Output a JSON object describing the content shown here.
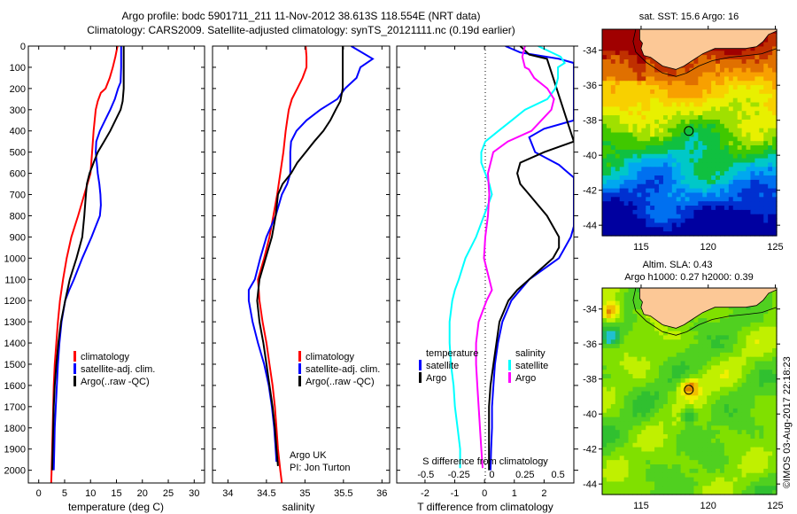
{
  "header": {
    "title_line1": "Argo profile: bodc 5901711_211 11-Nov-2012 38.613S 118.554E (NRT data)",
    "title_line2": "Climatology: CARS2009. Satellite-adjusted climatology: synTS_20121111.nc (0.19d earlier)"
  },
  "credit": {
    "institution": "Argo UK",
    "pi": "PI: Jon Turton",
    "stamp": "©IMOS 03-Aug-2017 22:18:23"
  },
  "colors": {
    "climatology": "#ff0000",
    "satellite": "#0000ff",
    "argo": "#000000",
    "sal_satellite": "#00ffff",
    "sal_argo": "#ff00ff",
    "land": "#fcc896"
  },
  "chart_data": [
    {
      "id": "temperature",
      "type": "line",
      "xlabel": "temperature (deg C)",
      "ylabel": "",
      "xlim": [
        -2,
        32
      ],
      "ylim": [
        2060,
        0
      ],
      "xticks": [
        "0",
        "5",
        "10",
        "15",
        "20",
        "25",
        "30"
      ],
      "yticks": [
        "0",
        "100",
        "200",
        "300",
        "400",
        "500",
        "600",
        "700",
        "800",
        "900",
        "1000",
        "1100",
        "1200",
        "1300",
        "1400",
        "1500",
        "1600",
        "1700",
        "1800",
        "1900",
        "2000"
      ],
      "legend": [
        "climatology",
        "satellite-adj. clim.",
        "Argo(..raw -QC)"
      ],
      "legend_position": "center-right",
      "series": [
        {
          "name": "climatology",
          "color": "#ff0000",
          "depth": [
            0,
            50,
            100,
            150,
            200,
            220,
            260,
            300,
            400,
            500,
            600,
            650,
            700,
            800,
            900,
            1000,
            1100,
            1200,
            1300,
            1400,
            1500,
            1600,
            1700,
            1800,
            1900,
            2000,
            2060
          ],
          "values": [
            15.2,
            14.8,
            14.3,
            13.7,
            12.9,
            12.0,
            11.4,
            11.0,
            10.6,
            10.3,
            10.0,
            9.4,
            8.8,
            7.6,
            6.3,
            5.4,
            4.7,
            4.1,
            3.7,
            3.4,
            3.1,
            2.9,
            2.8,
            2.7,
            2.6,
            2.5,
            2.4
          ]
        },
        {
          "name": "satellite-adj. clim.",
          "color": "#0000ff",
          "depth": [
            0,
            100,
            170,
            200,
            250,
            300,
            350,
            400,
            450,
            500,
            550,
            600,
            650,
            700,
            750,
            800,
            850,
            900,
            1000,
            1100,
            1150,
            1200,
            1300,
            1400,
            1500,
            1600,
            1700,
            1800,
            1900,
            2000
          ],
          "values": [
            15.9,
            15.9,
            15.8,
            15.3,
            14.7,
            13.8,
            12.8,
            11.8,
            11.1,
            11.0,
            11.2,
            11.4,
            11.7,
            11.9,
            12.0,
            11.8,
            11.0,
            10.2,
            8.4,
            6.8,
            5.9,
            5.1,
            4.4,
            4.0,
            3.7,
            3.5,
            3.3,
            3.1,
            3.0,
            2.9
          ]
        },
        {
          "name": "Argo(..raw -QC)",
          "color": "#000000",
          "depth": [
            0,
            100,
            200,
            260,
            300,
            350,
            400,
            450,
            500,
            550,
            600,
            650,
            700,
            800,
            900,
            1000,
            1100,
            1200,
            1300,
            1400,
            1500,
            1600,
            1700,
            1800,
            1900,
            2000
          ],
          "values": [
            16.4,
            16.4,
            16.4,
            16.2,
            15.8,
            14.8,
            13.8,
            12.6,
            11.4,
            10.6,
            9.8,
            9.3,
            9.1,
            8.8,
            8.4,
            7.3,
            6.0,
            5.1,
            4.3,
            3.8,
            3.4,
            3.1,
            2.9,
            2.8,
            2.7,
            2.6
          ]
        }
      ]
    },
    {
      "id": "salinity",
      "type": "line",
      "xlabel": "salinity",
      "xlim": [
        33.8,
        36.1
      ],
      "ylim": [
        2060,
        0
      ],
      "xticks": [
        "34",
        "34.5",
        "35",
        "35.5",
        "36"
      ],
      "legend": [
        "climatology",
        "satellite-adj. clim.",
        "Argo(..raw -QC)"
      ],
      "legend_position": "center-right",
      "series": [
        {
          "name": "climatology",
          "color": "#ff0000",
          "depth": [
            0,
            50,
            100,
            150,
            200,
            250,
            300,
            350,
            400,
            500,
            600,
            700,
            800,
            900,
            1000,
            1050,
            1100,
            1200,
            1300,
            1400,
            1500,
            1600,
            1700,
            1800,
            1900,
            2000,
            2060
          ],
          "values": [
            35.01,
            35.02,
            35.02,
            34.97,
            34.9,
            34.83,
            34.79,
            34.77,
            34.75,
            34.72,
            34.68,
            34.64,
            34.59,
            34.54,
            34.47,
            34.43,
            34.39,
            34.41,
            34.45,
            34.5,
            34.54,
            34.58,
            34.61,
            34.63,
            34.65,
            34.68,
            34.7
          ]
        },
        {
          "name": "satellite-adj. clim.",
          "color": "#0000ff",
          "depth": [
            0,
            60,
            100,
            150,
            200,
            250,
            300,
            350,
            400,
            450,
            500,
            550,
            600,
            650,
            700,
            800,
            900,
            1000,
            1100,
            1150,
            1200,
            1300,
            1400,
            1500,
            1600,
            1700,
            1800,
            1900,
            1960
          ],
          "values": [
            35.6,
            35.88,
            35.72,
            35.67,
            35.52,
            35.42,
            35.2,
            35.02,
            34.89,
            34.82,
            34.81,
            34.81,
            34.81,
            34.77,
            34.7,
            34.62,
            34.5,
            34.42,
            34.35,
            34.27,
            34.27,
            34.32,
            34.39,
            34.47,
            34.53,
            34.57,
            34.6,
            34.62,
            34.63
          ]
        },
        {
          "name": "Argo(..raw -QC)",
          "color": "#000000",
          "depth": [
            0,
            50,
            100,
            150,
            200,
            260,
            300,
            350,
            400,
            450,
            500,
            550,
            600,
            650,
            700,
            800,
            900,
            1000,
            1100,
            1200,
            1300,
            1400,
            1500,
            1600,
            1700,
            1800,
            1900,
            1980
          ],
          "values": [
            35.49,
            35.49,
            35.49,
            35.49,
            35.49,
            35.46,
            35.4,
            35.33,
            35.24,
            35.12,
            35.01,
            34.9,
            34.82,
            34.71,
            34.65,
            34.62,
            34.57,
            34.49,
            34.41,
            34.38,
            34.41,
            34.46,
            34.5,
            34.54,
            34.58,
            34.61,
            34.63,
            34.65
          ]
        }
      ]
    },
    {
      "id": "difference",
      "type": "line",
      "xlabel": "T difference from climatology",
      "xlabel2": "S difference from climatology",
      "xlim": [
        -2.95,
        3.0
      ],
      "xlim_salinity": [
        -0.72,
        0.62
      ],
      "ylim": [
        2060,
        0
      ],
      "xticks": [
        "-2",
        "-1",
        "0",
        "1",
        "2"
      ],
      "xticks_salinity": [
        "-0.5",
        "-0.25",
        "0",
        "0.25",
        "0.5"
      ],
      "zero_line": "dotted",
      "legend_groups": [
        {
          "title": "temperature",
          "entries": [
            "satellite",
            "Argo"
          ]
        },
        {
          "title": "salinity",
          "entries": [
            "satellite",
            "Argo"
          ]
        }
      ],
      "legend_position": "bottom-center",
      "series": [
        {
          "name": "temperature satellite",
          "axis": "T",
          "color": "#0000ff",
          "depth": [
            0,
            30,
            60,
            80,
            350,
            390,
            430,
            500,
            560,
            620,
            650,
            850,
            900,
            1000,
            1050,
            1100,
            1150,
            1200,
            1300,
            1400,
            1500,
            1600,
            1700,
            1800,
            1900,
            2000
          ],
          "values": [
            0.7,
            1.2,
            2.5,
            3.0,
            3.0,
            2.0,
            1.5,
            1.7,
            2.5,
            3.0,
            3.0,
            3.0,
            2.9,
            2.5,
            2.0,
            1.5,
            1.2,
            0.9,
            0.6,
            0.45,
            0.35,
            0.3,
            0.25,
            0.25,
            0.22,
            0.2
          ]
        },
        {
          "name": "temperature Argo",
          "axis": "T",
          "color": "#000000",
          "depth": [
            0,
            40,
            60,
            450,
            500,
            550,
            600,
            650,
            700,
            800,
            900,
            950,
            1000,
            1050,
            1100,
            1150,
            1200,
            1300,
            1400,
            1500,
            1600,
            1700,
            1800,
            1900,
            2000
          ],
          "values": [
            1.2,
            1.5,
            2.1,
            3.0,
            2.0,
            1.2,
            1.1,
            1.2,
            1.5,
            2.1,
            2.5,
            2.5,
            2.3,
            1.9,
            1.5,
            1.1,
            0.8,
            0.5,
            0.4,
            0.3,
            0.2,
            0.15,
            0.15,
            0.15,
            0.15
          ]
        },
        {
          "name": "salinity satellite",
          "axis": "S",
          "color": "#00ffff",
          "depth": [
            0,
            50,
            80,
            100,
            150,
            200,
            250,
            300,
            350,
            400,
            450,
            500,
            550,
            600,
            650,
            700,
            800,
            900,
            1000,
            1100,
            1150,
            1200,
            1300,
            1400,
            1500,
            1600,
            1700,
            1800,
            1900,
            1990
          ],
          "values": [
            0.35,
            0.52,
            0.55,
            0.5,
            0.5,
            0.48,
            0.42,
            0.25,
            0.15,
            0.05,
            -0.05,
            -0.08,
            -0.08,
            -0.05,
            -0.02,
            0.0,
            -0.06,
            -0.12,
            -0.2,
            -0.25,
            -0.28,
            -0.3,
            -0.32,
            -0.32,
            -0.31,
            -0.29,
            -0.28,
            -0.26,
            -0.24,
            -0.24
          ]
        },
        {
          "name": "salinity Argo",
          "axis": "S",
          "color": "#ff00ff",
          "depth": [
            0,
            50,
            100,
            110,
            150,
            200,
            250,
            300,
            400,
            450,
            500,
            600,
            700,
            800,
            900,
            1000,
            1100,
            1150,
            1200,
            1300,
            1400,
            1500,
            1600,
            1700,
            1800,
            1900,
            1990
          ],
          "values": [
            0.25,
            0.23,
            0.25,
            0.28,
            0.32,
            0.42,
            0.47,
            0.45,
            0.3,
            0.12,
            0.01,
            -0.03,
            -0.02,
            -0.03,
            -0.05,
            -0.06,
            -0.02,
            0.0,
            -0.04,
            -0.1,
            -0.12,
            -0.12,
            -0.11,
            -0.1,
            -0.09,
            -0.08,
            -0.07
          ]
        }
      ]
    },
    {
      "id": "sst-map",
      "type": "heatmap",
      "title": "sat. SST: 15.6 Argo: 16",
      "xticks": [
        "115",
        "120",
        "125"
      ],
      "yticks": [
        "-34",
        "-36",
        "-38",
        "-40",
        "-42",
        "-44"
      ],
      "xlim": [
        112.1,
        125.1
      ],
      "ylim": [
        -44.6,
        -32.8
      ],
      "marker": {
        "lon": 118.554,
        "lat": -38.613
      }
    },
    {
      "id": "sla-map",
      "type": "heatmap",
      "title": "Altim. SLA: 0.43",
      "subtitle": "Argo h1000: 0.27 h2000: 0.39",
      "xticks": [
        "115",
        "120",
        "125"
      ],
      "yticks": [
        "-34",
        "-36",
        "-38",
        "-40",
        "-42",
        "-44"
      ],
      "xlim": [
        112.1,
        125.1
      ],
      "ylim": [
        -44.6,
        -32.8
      ],
      "marker": {
        "lon": 118.554,
        "lat": -38.613
      }
    }
  ]
}
